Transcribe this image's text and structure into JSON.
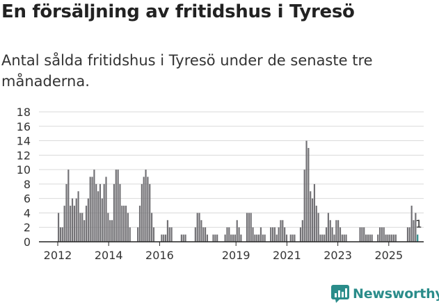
{
  "title": "En försäljning av fritidshus i Tyresö",
  "subtitle": "Antal sålda fritidshus i Tyresö under de senaste tre månaderna.",
  "brand": {
    "name": "Newsworthy",
    "icon": "bar-chart-logo-icon",
    "color": "#2a8c8a"
  },
  "chart_data": {
    "type": "bar",
    "title": "",
    "xlabel": "",
    "ylabel": "",
    "ylim": [
      0,
      18
    ],
    "yticks": [
      0,
      2,
      4,
      6,
      8,
      10,
      12,
      14,
      16,
      18
    ],
    "xticks": [
      {
        "label": "2012",
        "x": 2012
      },
      {
        "label": "2014",
        "x": 2014
      },
      {
        "label": "2016",
        "x": 2016
      },
      {
        "label": "2019",
        "x": 2019
      },
      {
        "label": "2021",
        "x": 2021
      },
      {
        "label": "2023",
        "x": 2023
      },
      {
        "label": "2025",
        "x": 2025
      }
    ],
    "grid": true,
    "bar_color": "#717074",
    "highlight_color": "#2a8c8a",
    "highlight_label": "1",
    "x_start": 2012,
    "x_end": 2025.75,
    "period": "month",
    "values": [
      4,
      2,
      2,
      5,
      8,
      10,
      5,
      6,
      5,
      6,
      7,
      4,
      4,
      3,
      5,
      6,
      9,
      9,
      10,
      8,
      7,
      8,
      6,
      8,
      9,
      4,
      3,
      3,
      8,
      10,
      10,
      8,
      5,
      5,
      5,
      4,
      2,
      0,
      0,
      0,
      2,
      5,
      8,
      9,
      10,
      9,
      8,
      4,
      2,
      0,
      0,
      0,
      1,
      1,
      1,
      3,
      2,
      2,
      0,
      0,
      0,
      0,
      1,
      1,
      1,
      0,
      0,
      0,
      0,
      2,
      4,
      4,
      3,
      2,
      2,
      1,
      0,
      0,
      1,
      1,
      1,
      0,
      0,
      0,
      1,
      2,
      2,
      1,
      1,
      1,
      3,
      2,
      1,
      0,
      0,
      4,
      4,
      4,
      2,
      1,
      1,
      1,
      2,
      1,
      1,
      0,
      0,
      2,
      2,
      2,
      1,
      2,
      3,
      3,
      2,
      1,
      0,
      1,
      1,
      1,
      0,
      0,
      2,
      3,
      10,
      14,
      13,
      7,
      6,
      8,
      5,
      4,
      1,
      1,
      1,
      2,
      4,
      3,
      2,
      1,
      3,
      3,
      2,
      1,
      1,
      1,
      0,
      0,
      0,
      0,
      0,
      0,
      2,
      2,
      2,
      1,
      1,
      1,
      1,
      0,
      0,
      1,
      2,
      2,
      2,
      1,
      1,
      1,
      1,
      1,
      1,
      0,
      0,
      0,
      0,
      0,
      2,
      2,
      5,
      3,
      4,
      1
    ]
  }
}
